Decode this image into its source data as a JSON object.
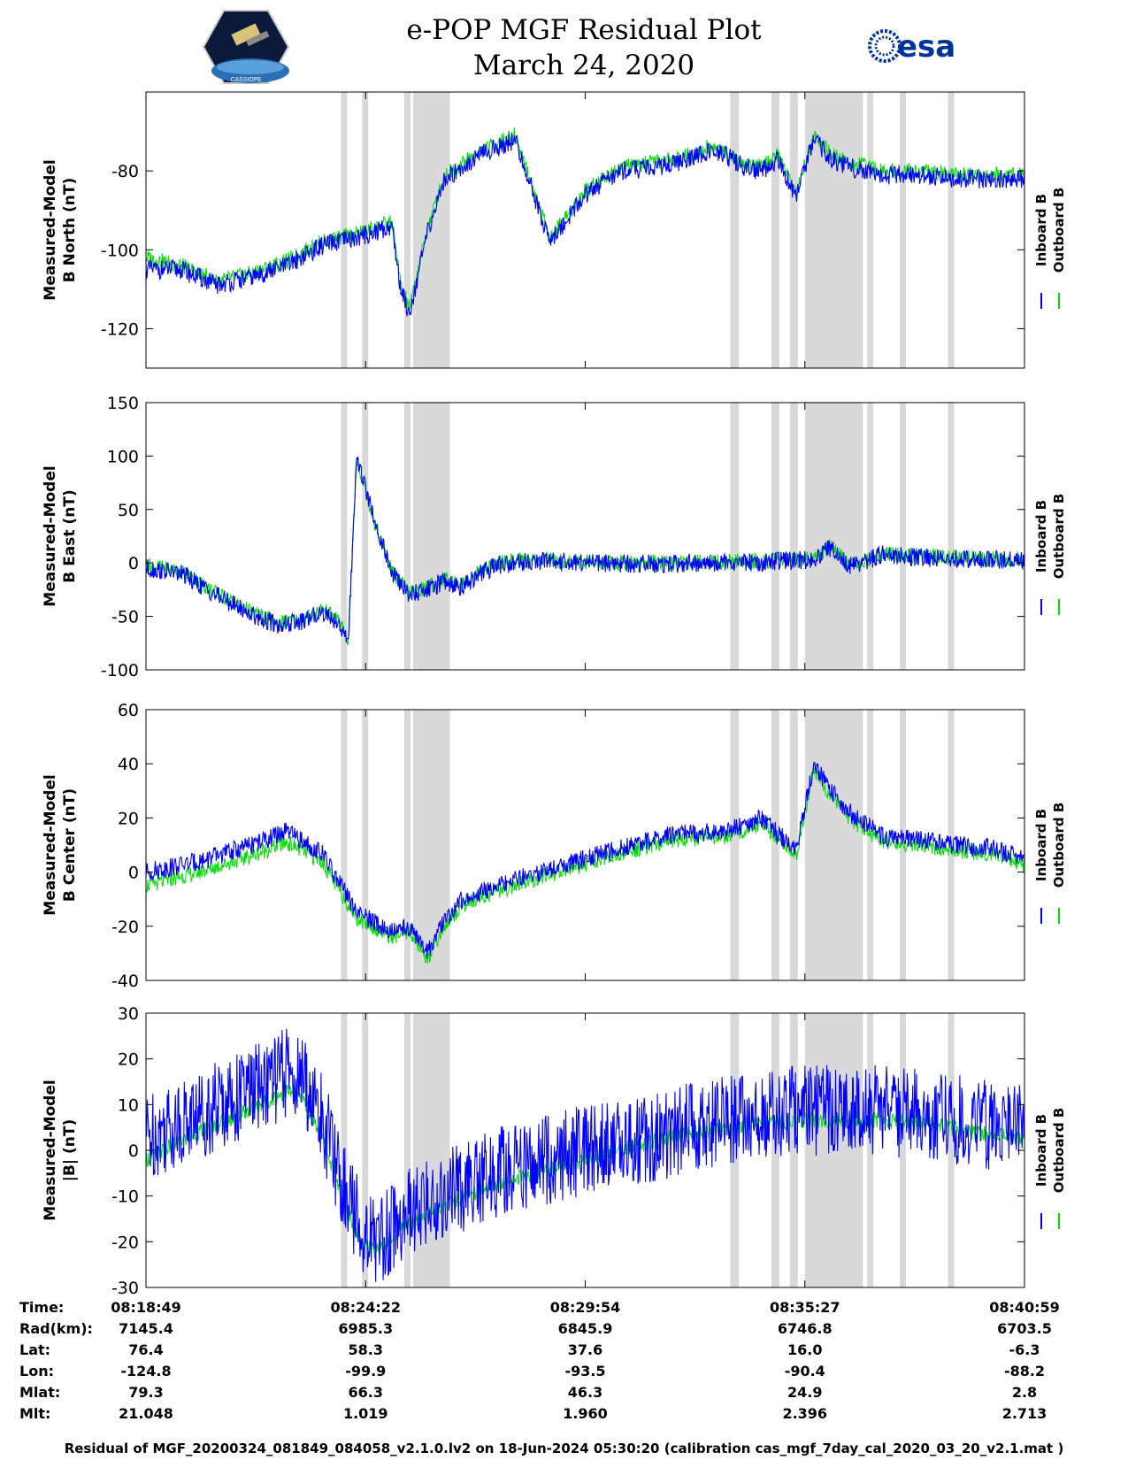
{
  "title": {
    "line1": "e-POP MGF Residual Plot",
    "line2": "March 24, 2020"
  },
  "logos": {
    "left": "cassiope-satellite-logo",
    "left_text": "CASSIOPE",
    "right_text": "esa"
  },
  "colors": {
    "inboard": "#0000ff",
    "outboard": "#00e000",
    "shade": "#d9d9d9"
  },
  "chart_data": [
    {
      "type": "line",
      "ylabel_line1": "Measured-Model",
      "ylabel_line2": "B North (nT)",
      "ylim": [
        -130,
        -60
      ],
      "yticks": [
        -120,
        -100,
        -80
      ],
      "legend": [
        "Inboard B",
        "Outboard B"
      ],
      "x": [
        0,
        4,
        8,
        12,
        16,
        20,
        24,
        28,
        29,
        30,
        32,
        34,
        38,
        42,
        46,
        50,
        54,
        58,
        62,
        64,
        66,
        68,
        70,
        72,
        74,
        76,
        78,
        80,
        84,
        88,
        92,
        96,
        100
      ],
      "inboard": [
        -105,
        -105,
        -109,
        -107,
        -104,
        -99,
        -97,
        -94,
        -110,
        -116,
        -96,
        -82,
        -76,
        -72,
        -98,
        -86,
        -80,
        -79,
        -77,
        -75,
        -76,
        -79,
        -80,
        -77,
        -87,
        -72,
        -77,
        -79,
        -81,
        -81,
        -82,
        -82,
        -82
      ],
      "outboard": [
        -102,
        -104,
        -108,
        -106,
        -103,
        -98,
        -96,
        -93,
        -109,
        -115,
        -95,
        -81,
        -75,
        -71,
        -97,
        -85,
        -79,
        -78,
        -76,
        -74,
        -75,
        -78,
        -79,
        -76,
        -86,
        -71,
        -76,
        -78,
        -80,
        -80,
        -81,
        -81,
        -81
      ]
    },
    {
      "type": "line",
      "ylabel_line1": "Measured-Model",
      "ylabel_line2": "B East (nT)",
      "ylim": [
        -100,
        150
      ],
      "yticks": [
        -100,
        -50,
        0,
        50,
        100,
        150
      ],
      "legend": [
        "Inboard B",
        "Outboard B"
      ],
      "x": [
        0,
        4,
        8,
        12,
        15,
        18,
        20,
        22,
        23,
        24,
        26,
        28,
        30,
        32,
        34,
        36,
        38,
        40,
        44,
        50,
        60,
        70,
        76,
        78,
        80,
        84,
        88,
        92,
        96,
        100
      ],
      "inboard": [
        -5,
        -10,
        -30,
        -48,
        -58,
        -55,
        -45,
        -56,
        -77,
        100,
        40,
        -10,
        -30,
        -25,
        -17,
        -22,
        -10,
        -2,
        2,
        0,
        -1,
        1,
        3,
        15,
        -3,
        8,
        5,
        4,
        3,
        2
      ],
      "outboard": [
        -2,
        -8,
        -28,
        -46,
        -56,
        -53,
        -43,
        -54,
        -75,
        98,
        38,
        -8,
        -28,
        -23,
        -15,
        -20,
        -8,
        0,
        3,
        1,
        0,
        2,
        4,
        16,
        -2,
        9,
        6,
        5,
        4,
        3
      ]
    },
    {
      "type": "line",
      "ylabel_line1": "Measured-Model",
      "ylabel_line2": "B Center (nT)",
      "ylim": [
        -40,
        60
      ],
      "yticks": [
        -40,
        -20,
        0,
        20,
        40,
        60
      ],
      "legend": [
        "Inboard B",
        "Outboard B"
      ],
      "x": [
        0,
        6,
        12,
        16,
        20,
        24,
        28,
        30,
        32,
        34,
        36,
        40,
        50,
        60,
        66,
        70,
        74,
        76,
        78,
        80,
        84,
        88,
        92,
        96,
        100
      ],
      "inboard": [
        0,
        4,
        10,
        15,
        7,
        -15,
        -22,
        -20,
        -30,
        -18,
        -10,
        -5,
        5,
        14,
        15,
        20,
        8,
        40,
        30,
        22,
        13,
        12,
        10,
        9,
        5
      ],
      "outboard": [
        -5,
        0,
        6,
        11,
        4,
        -17,
        -24,
        -22,
        -32,
        -20,
        -12,
        -7,
        3,
        12,
        13,
        18,
        6,
        38,
        28,
        20,
        11,
        10,
        8,
        7,
        3
      ]
    },
    {
      "type": "line",
      "ylabel_line1": "Measured-Model",
      "ylabel_line2": "|B| (nT)",
      "ylim": [
        -30,
        30
      ],
      "yticks": [
        -30,
        -20,
        -10,
        0,
        10,
        20,
        30
      ],
      "legend": [
        "Inboard B",
        "Outboard B"
      ],
      "x": [
        0,
        6,
        12,
        16,
        18,
        20,
        22,
        24,
        26,
        28,
        30,
        34,
        40,
        46,
        50,
        60,
        70,
        80,
        88,
        94,
        100
      ],
      "inboard": [
        3,
        8,
        13,
        17,
        15,
        7,
        -5,
        -15,
        -20,
        -17,
        -14,
        -10,
        -5,
        -2,
        0,
        4,
        8,
        9,
        8,
        6,
        5
      ],
      "outboard": [
        -2,
        4,
        9,
        13,
        11,
        3,
        -8,
        -18,
        -22,
        -19,
        -16,
        -12,
        -7,
        -4,
        -2,
        3,
        6,
        7,
        6,
        4,
        3
      ],
      "inboard_amplitude": 10
    }
  ],
  "x_axis": {
    "xlim": [
      0,
      100
    ],
    "ticks": [
      0,
      25,
      50,
      75,
      100
    ],
    "shaded_intervals": [
      [
        22.2,
        22.9
      ],
      [
        24.6,
        25.3
      ],
      [
        29.4,
        30.1
      ],
      [
        30.4,
        34.6
      ],
      [
        66.5,
        67.5
      ],
      [
        71.2,
        72.1
      ],
      [
        73.3,
        74.2
      ],
      [
        75.0,
        81.6
      ],
      [
        82.1,
        82.8
      ],
      [
        85.8,
        86.5
      ],
      [
        91.3,
        92.0
      ]
    ]
  },
  "footer": {
    "labels": [
      "Time:",
      "Rad(km):",
      "Lat:",
      "Lon:",
      "Mlat:",
      "Mlt:"
    ],
    "columns": [
      {
        "time": "08:18:49",
        "rad": "7145.4",
        "lat": "76.4",
        "lon": "-124.8",
        "mlat": "79.3",
        "mlt": "21.048"
      },
      {
        "time": "08:24:22",
        "rad": "6985.3",
        "lat": "58.3",
        "lon": "-99.9",
        "mlat": "66.3",
        "mlt": "1.019"
      },
      {
        "time": "08:29:54",
        "rad": "6845.9",
        "lat": "37.6",
        "lon": "-93.5",
        "mlat": "46.3",
        "mlt": "1.960"
      },
      {
        "time": "08:35:27",
        "rad": "6746.8",
        "lat": "16.0",
        "lon": "-90.4",
        "mlat": "24.9",
        "mlt": "2.396"
      },
      {
        "time": "08:40:59",
        "rad": "6703.5",
        "lat": "-6.3",
        "lon": "-88.2",
        "mlat": "2.8",
        "mlt": "2.713"
      }
    ]
  },
  "caption": "Residual of MGF_20200324_081849_084058_v2.1.0.lv2 on 18-Jun-2024 05:30:20 (calibration cas_mgf_7day_cal_2020_03_20_v2.1.mat )"
}
